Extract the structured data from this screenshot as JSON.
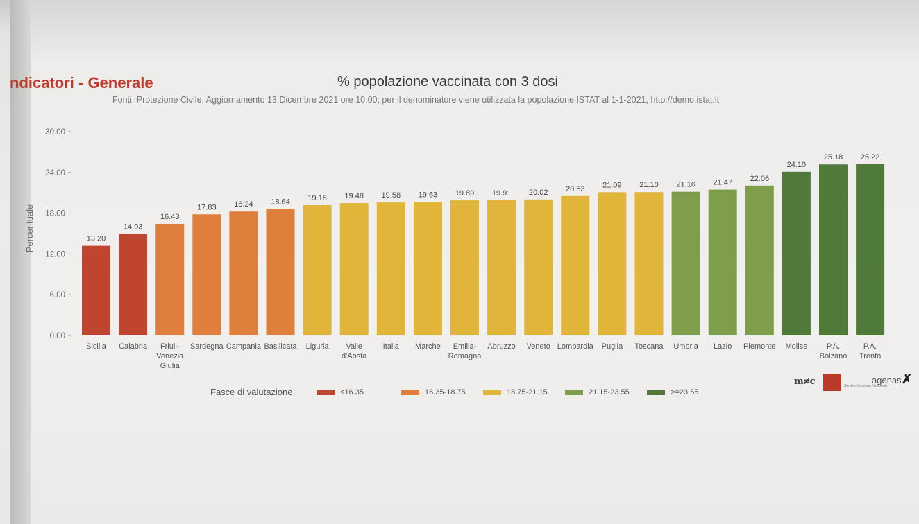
{
  "header": {
    "section_title": "ndicatori - Generale",
    "chart_title": "% popolazione vaccinata con 3 dosi",
    "subtitle": "Fonti: Protezione Civile, Aggiornamento 13 Dicembre 2021 ore 10.00; per il denominatore viene utilizzata la popolazione ISTAT al 1-1-2021, http://demo.istat.it"
  },
  "chart_data": {
    "type": "bar",
    "title": "% popolazione vaccinata con 3 dosi",
    "ylabel": "Percentuale",
    "xlabel": "",
    "ylim": [
      0,
      30
    ],
    "yticks": [
      "0.00",
      "6.00",
      "12.00",
      "18.00",
      "24.00",
      "30.00"
    ],
    "categories": [
      [
        "Sicilia"
      ],
      [
        "Calabria"
      ],
      [
        "Friuli-",
        "Venezia",
        "Giulia"
      ],
      [
        "Sardegna"
      ],
      [
        "Campania"
      ],
      [
        "Basilicata"
      ],
      [
        "Liguria"
      ],
      [
        "Valle",
        "d'Aosta"
      ],
      [
        "Italia"
      ],
      [
        "Marche"
      ],
      [
        "Emilia-",
        "Romagna"
      ],
      [
        "Abruzzo"
      ],
      [
        "Veneto"
      ],
      [
        "Lombardia"
      ],
      [
        "Puglia"
      ],
      [
        "Toscana"
      ],
      [
        "Umbria"
      ],
      [
        "Lazio"
      ],
      [
        "Piemonte"
      ],
      [
        "Molise"
      ],
      [
        "P.A.",
        "Bolzano"
      ],
      [
        "P.A.",
        "Trento"
      ]
    ],
    "values": [
      13.2,
      14.93,
      16.43,
      17.83,
      18.24,
      18.64,
      19.18,
      19.48,
      19.58,
      19.63,
      19.89,
      19.91,
      20.02,
      20.53,
      21.09,
      21.1,
      21.16,
      21.47,
      22.06,
      24.1,
      25.18,
      25.22
    ],
    "value_labels": [
      "13.20",
      "14.93",
      "16.43",
      "17.83",
      "18.24",
      "18.64",
      "19.18",
      "19.48",
      "19.58",
      "19.63",
      "19.89",
      "19.91",
      "20.02",
      "20.53",
      "21.09",
      "21.10",
      "21.16",
      "21.47",
      "22.06",
      "24.10",
      "25.18",
      "25.22"
    ],
    "bands": [
      0,
      0,
      1,
      1,
      1,
      1,
      2,
      2,
      2,
      2,
      2,
      2,
      2,
      2,
      2,
      2,
      3,
      3,
      3,
      4,
      4,
      4
    ],
    "grid": false
  },
  "legend": {
    "title": "Fasce di valutazione",
    "items": [
      {
        "label": "<16.35",
        "color": "#c0452f"
      },
      {
        "label": "16.35-18.75",
        "color": "#e07e3c"
      },
      {
        "label": "18.75-21.15",
        "color": "#e0b53a"
      },
      {
        "label": "21.15-23.55",
        "color": "#7e9e4c"
      },
      {
        "label": ">=23.55",
        "color": "#4f7a3a"
      }
    ]
  },
  "logos": {
    "mds": "m≠c",
    "ssn": "Servizio Sanitario Nazionale",
    "agenas": "agenas."
  }
}
